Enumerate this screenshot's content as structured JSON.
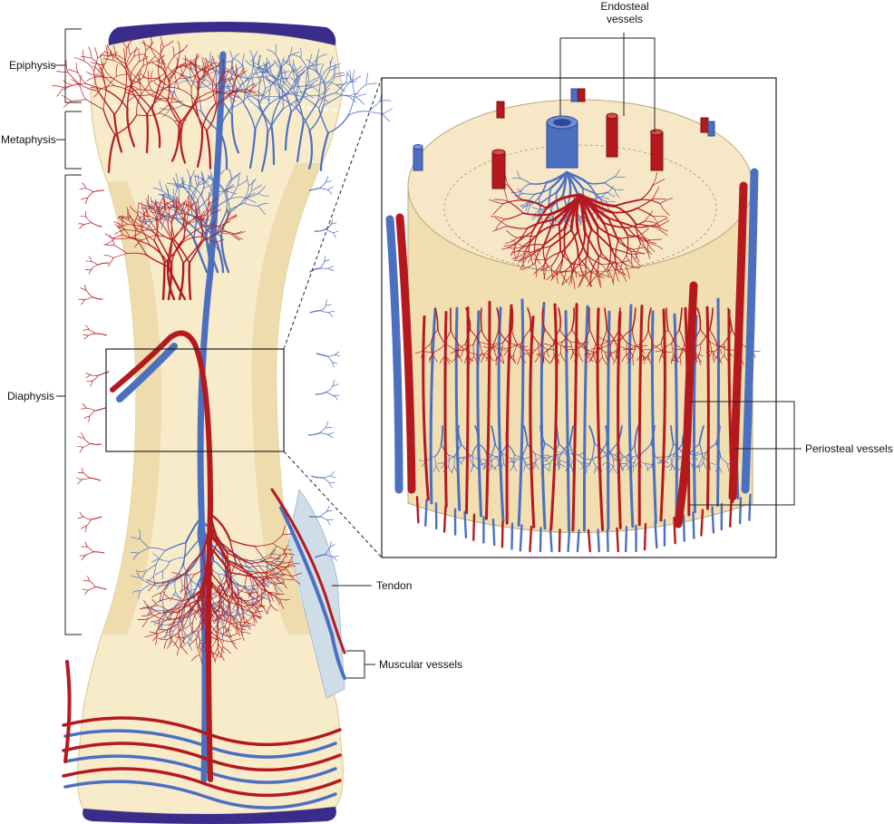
{
  "labels": {
    "epiphysis": "Epiphysis",
    "metaphysis": "Metaphysis",
    "diaphysis": "Diaphysis",
    "endosteal_line1": "Endosteal",
    "endosteal_line2": "vessels",
    "periosteal": "Periosteal vessels",
    "tendon": "Tendon",
    "muscular": "Muscular vessels"
  },
  "colors": {
    "artery": "#b5191e",
    "artery_dark": "#7e0f12",
    "vein": "#4c6fbf",
    "vein_dark": "#2f4a93",
    "bone": "#f7ebca",
    "cortex": "#eedcad",
    "cap": "#3a2c8a",
    "tendon": "#cfdde8",
    "line": "#222222"
  }
}
